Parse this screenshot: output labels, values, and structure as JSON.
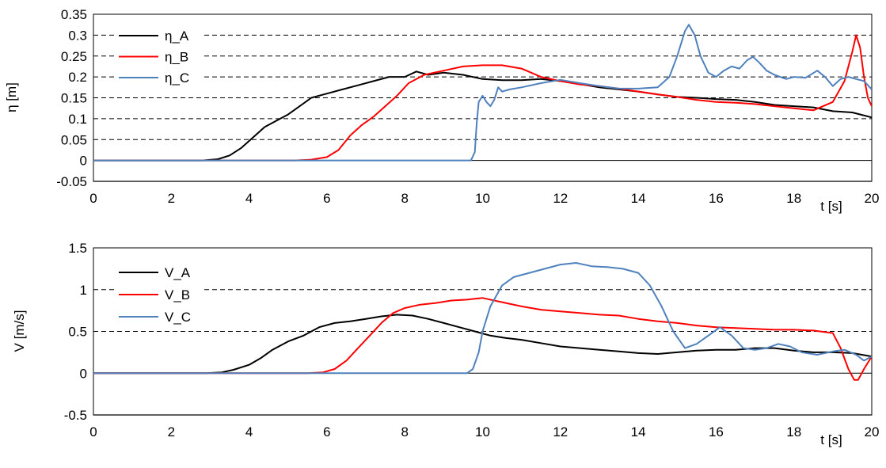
{
  "chart_data": [
    {
      "type": "line",
      "ylabel": "η   [m]",
      "xlabel": "t [s]",
      "xlim": [
        0,
        20
      ],
      "ylim": [
        -0.05,
        0.35
      ],
      "x_ticks": [
        "0",
        "2",
        "4",
        "6",
        "8",
        "10",
        "12",
        "14",
        "16",
        "18",
        "20"
      ],
      "y_ticks": [
        "0.35",
        "0.3",
        "0.25",
        "0.2",
        "0.15",
        "0.1",
        "0.05",
        "0",
        "-0.05"
      ],
      "y_tick_values": [
        0.35,
        0.3,
        0.25,
        0.2,
        0.15,
        0.1,
        0.05,
        0,
        -0.05
      ],
      "grid": "horizontal dashed",
      "legend": "top-left",
      "series": [
        {
          "name": "η_A",
          "color": "#000000",
          "points": [
            [
              0,
              0
            ],
            [
              2.8,
              0
            ],
            [
              3.2,
              0.003
            ],
            [
              3.5,
              0.012
            ],
            [
              3.8,
              0.03
            ],
            [
              4.1,
              0.055
            ],
            [
              4.4,
              0.08
            ],
            [
              4.8,
              0.1
            ],
            [
              5.0,
              0.11
            ],
            [
              5.3,
              0.13
            ],
            [
              5.6,
              0.15
            ],
            [
              6.0,
              0.16
            ],
            [
              6.4,
              0.17
            ],
            [
              6.8,
              0.18
            ],
            [
              7.2,
              0.19
            ],
            [
              7.6,
              0.2
            ],
            [
              8.0,
              0.2
            ],
            [
              8.3,
              0.213
            ],
            [
              8.6,
              0.205
            ],
            [
              9.0,
              0.21
            ],
            [
              9.5,
              0.205
            ],
            [
              10.0,
              0.195
            ],
            [
              10.5,
              0.192
            ],
            [
              11.0,
              0.192
            ],
            [
              11.5,
              0.195
            ],
            [
              12.0,
              0.19
            ],
            [
              12.5,
              0.183
            ],
            [
              13.0,
              0.175
            ],
            [
              13.5,
              0.17
            ],
            [
              14.0,
              0.165
            ],
            [
              14.5,
              0.158
            ],
            [
              15.0,
              0.152
            ],
            [
              15.5,
              0.15
            ],
            [
              16.0,
              0.147
            ],
            [
              16.5,
              0.145
            ],
            [
              17.0,
              0.14
            ],
            [
              17.5,
              0.133
            ],
            [
              18.0,
              0.13
            ],
            [
              18.5,
              0.127
            ],
            [
              19.0,
              0.118
            ],
            [
              19.5,
              0.115
            ],
            [
              20.0,
              0.103
            ]
          ]
        },
        {
          "name": "η_B",
          "color": "#ff0000",
          "points": [
            [
              0,
              0
            ],
            [
              5.2,
              0
            ],
            [
              5.6,
              0.002
            ],
            [
              6.0,
              0.008
            ],
            [
              6.3,
              0.025
            ],
            [
              6.6,
              0.06
            ],
            [
              6.9,
              0.085
            ],
            [
              7.2,
              0.105
            ],
            [
              7.5,
              0.13
            ],
            [
              7.8,
              0.155
            ],
            [
              8.1,
              0.185
            ],
            [
              8.5,
              0.205
            ],
            [
              9.0,
              0.215
            ],
            [
              9.5,
              0.225
            ],
            [
              10.0,
              0.228
            ],
            [
              10.5,
              0.228
            ],
            [
              11.0,
              0.22
            ],
            [
              11.5,
              0.2
            ],
            [
              12.0,
              0.19
            ],
            [
              12.5,
              0.182
            ],
            [
              13.0,
              0.178
            ],
            [
              13.5,
              0.172
            ],
            [
              14.0,
              0.165
            ],
            [
              14.5,
              0.158
            ],
            [
              15.0,
              0.152
            ],
            [
              15.5,
              0.145
            ],
            [
              16.0,
              0.14
            ],
            [
              16.5,
              0.138
            ],
            [
              17.0,
              0.135
            ],
            [
              17.5,
              0.13
            ],
            [
              18.0,
              0.125
            ],
            [
              18.5,
              0.12
            ],
            [
              19.0,
              0.14
            ],
            [
              19.3,
              0.19
            ],
            [
              19.5,
              0.26
            ],
            [
              19.6,
              0.3
            ],
            [
              19.7,
              0.27
            ],
            [
              19.8,
              0.2
            ],
            [
              19.9,
              0.15
            ],
            [
              20.0,
              0.13
            ]
          ]
        },
        {
          "name": "η_C",
          "color": "#4f81bd",
          "points": [
            [
              0,
              0
            ],
            [
              9.7,
              0
            ],
            [
              9.8,
              0.02
            ],
            [
              9.85,
              0.09
            ],
            [
              9.9,
              0.14
            ],
            [
              10.0,
              0.155
            ],
            [
              10.1,
              0.14
            ],
            [
              10.2,
              0.13
            ],
            [
              10.3,
              0.145
            ],
            [
              10.4,
              0.175
            ],
            [
              10.5,
              0.165
            ],
            [
              10.7,
              0.17
            ],
            [
              11.0,
              0.175
            ],
            [
              11.5,
              0.185
            ],
            [
              12.0,
              0.193
            ],
            [
              12.5,
              0.185
            ],
            [
              13.0,
              0.178
            ],
            [
              13.5,
              0.172
            ],
            [
              14.0,
              0.172
            ],
            [
              14.5,
              0.175
            ],
            [
              14.8,
              0.2
            ],
            [
              15.0,
              0.25
            ],
            [
              15.2,
              0.31
            ],
            [
              15.3,
              0.325
            ],
            [
              15.45,
              0.3
            ],
            [
              15.6,
              0.25
            ],
            [
              15.8,
              0.21
            ],
            [
              16.0,
              0.2
            ],
            [
              16.2,
              0.215
            ],
            [
              16.4,
              0.225
            ],
            [
              16.6,
              0.22
            ],
            [
              16.8,
              0.24
            ],
            [
              16.95,
              0.248
            ],
            [
              17.1,
              0.235
            ],
            [
              17.3,
              0.215
            ],
            [
              17.5,
              0.205
            ],
            [
              17.8,
              0.195
            ],
            [
              18.0,
              0.2
            ],
            [
              18.3,
              0.198
            ],
            [
              18.6,
              0.215
            ],
            [
              18.8,
              0.2
            ],
            [
              19.0,
              0.178
            ],
            [
              19.2,
              0.195
            ],
            [
              19.4,
              0.2
            ],
            [
              19.6,
              0.195
            ],
            [
              19.8,
              0.19
            ],
            [
              20.0,
              0.17
            ]
          ]
        }
      ]
    },
    {
      "type": "line",
      "ylabel": "V   [m/s]",
      "xlabel": "t [s]",
      "xlim": [
        0,
        20
      ],
      "ylim": [
        -0.5,
        1.5
      ],
      "x_ticks": [
        "0",
        "2",
        "4",
        "6",
        "8",
        "10",
        "12",
        "14",
        "16",
        "18",
        "20"
      ],
      "y_ticks": [
        "1.5",
        "1",
        "0.5",
        "0",
        "-0.5"
      ],
      "y_tick_values": [
        1.5,
        1,
        0.5,
        0,
        -0.5
      ],
      "grid": "horizontal dashed",
      "legend": "top-left",
      "series": [
        {
          "name": "V_A",
          "color": "#000000",
          "points": [
            [
              0,
              0
            ],
            [
              2.9,
              0
            ],
            [
              3.3,
              0.01
            ],
            [
              3.6,
              0.04
            ],
            [
              4.0,
              0.1
            ],
            [
              4.3,
              0.18
            ],
            [
              4.6,
              0.28
            ],
            [
              5.0,
              0.38
            ],
            [
              5.4,
              0.45
            ],
            [
              5.8,
              0.55
            ],
            [
              6.2,
              0.6
            ],
            [
              6.6,
              0.62
            ],
            [
              7.0,
              0.65
            ],
            [
              7.4,
              0.68
            ],
            [
              7.8,
              0.7
            ],
            [
              8.2,
              0.69
            ],
            [
              8.6,
              0.65
            ],
            [
              9.0,
              0.6
            ],
            [
              9.4,
              0.55
            ],
            [
              9.8,
              0.5
            ],
            [
              10.2,
              0.45
            ],
            [
              10.6,
              0.42
            ],
            [
              11.0,
              0.4
            ],
            [
              11.5,
              0.36
            ],
            [
              12.0,
              0.32
            ],
            [
              12.5,
              0.3
            ],
            [
              13.0,
              0.28
            ],
            [
              13.5,
              0.26
            ],
            [
              14.0,
              0.24
            ],
            [
              14.5,
              0.23
            ],
            [
              15.0,
              0.25
            ],
            [
              15.5,
              0.27
            ],
            [
              16.0,
              0.28
            ],
            [
              16.5,
              0.28
            ],
            [
              17.0,
              0.3
            ],
            [
              17.5,
              0.3
            ],
            [
              18.0,
              0.27
            ],
            [
              18.5,
              0.25
            ],
            [
              19.0,
              0.25
            ],
            [
              19.5,
              0.24
            ],
            [
              20.0,
              0.2
            ]
          ]
        },
        {
          "name": "V_B",
          "color": "#ff0000",
          "points": [
            [
              0,
              0
            ],
            [
              5.5,
              0
            ],
            [
              5.9,
              0.01
            ],
            [
              6.2,
              0.05
            ],
            [
              6.5,
              0.15
            ],
            [
              6.8,
              0.3
            ],
            [
              7.1,
              0.45
            ],
            [
              7.4,
              0.6
            ],
            [
              7.7,
              0.72
            ],
            [
              8.0,
              0.78
            ],
            [
              8.4,
              0.82
            ],
            [
              8.8,
              0.84
            ],
            [
              9.2,
              0.87
            ],
            [
              9.6,
              0.88
            ],
            [
              10.0,
              0.9
            ],
            [
              10.5,
              0.85
            ],
            [
              11.0,
              0.8
            ],
            [
              11.5,
              0.76
            ],
            [
              12.0,
              0.74
            ],
            [
              12.5,
              0.72
            ],
            [
              13.0,
              0.7
            ],
            [
              13.5,
              0.69
            ],
            [
              14.0,
              0.65
            ],
            [
              14.5,
              0.62
            ],
            [
              15.0,
              0.6
            ],
            [
              15.5,
              0.57
            ],
            [
              16.0,
              0.55
            ],
            [
              16.5,
              0.54
            ],
            [
              17.0,
              0.53
            ],
            [
              17.5,
              0.52
            ],
            [
              18.0,
              0.52
            ],
            [
              18.5,
              0.51
            ],
            [
              19.0,
              0.48
            ],
            [
              19.2,
              0.3
            ],
            [
              19.4,
              0.05
            ],
            [
              19.55,
              -0.08
            ],
            [
              19.65,
              -0.08
            ],
            [
              19.8,
              0.05
            ],
            [
              20.0,
              0.2
            ]
          ]
        },
        {
          "name": "V_C",
          "color": "#4f81bd",
          "points": [
            [
              0,
              0
            ],
            [
              9.6,
              0
            ],
            [
              9.75,
              0.05
            ],
            [
              9.9,
              0.25
            ],
            [
              10.0,
              0.5
            ],
            [
              10.2,
              0.8
            ],
            [
              10.5,
              1.05
            ],
            [
              10.8,
              1.15
            ],
            [
              11.2,
              1.2
            ],
            [
              11.6,
              1.25
            ],
            [
              12.0,
              1.3
            ],
            [
              12.4,
              1.32
            ],
            [
              12.8,
              1.28
            ],
            [
              13.2,
              1.27
            ],
            [
              13.6,
              1.25
            ],
            [
              14.0,
              1.2
            ],
            [
              14.3,
              1.05
            ],
            [
              14.6,
              0.8
            ],
            [
              14.9,
              0.5
            ],
            [
              15.2,
              0.3
            ],
            [
              15.5,
              0.35
            ],
            [
              15.8,
              0.45
            ],
            [
              16.1,
              0.55
            ],
            [
              16.4,
              0.45
            ],
            [
              16.7,
              0.3
            ],
            [
              17.0,
              0.28
            ],
            [
              17.3,
              0.3
            ],
            [
              17.6,
              0.35
            ],
            [
              17.9,
              0.32
            ],
            [
              18.2,
              0.25
            ],
            [
              18.6,
              0.22
            ],
            [
              19.0,
              0.26
            ],
            [
              19.3,
              0.28
            ],
            [
              19.6,
              0.22
            ],
            [
              19.8,
              0.15
            ],
            [
              20.0,
              0.2
            ]
          ]
        }
      ]
    }
  ]
}
